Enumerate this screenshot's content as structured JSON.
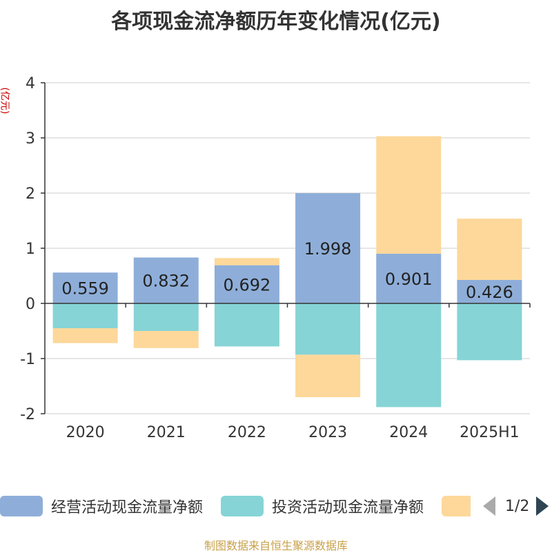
{
  "title": "各项现金流净额历年变化情况(亿元)",
  "unit_label": "(亿元)",
  "chart_data": {
    "type": "bar",
    "stacked": true,
    "categories": [
      "2020",
      "2021",
      "2022",
      "2023",
      "2024",
      "2025H1"
    ],
    "ylim": [
      -2,
      4
    ],
    "yticks": [
      -2,
      -1,
      0,
      1,
      2,
      3,
      4
    ],
    "grid": true,
    "legend_position": "bottom",
    "series": [
      {
        "name": "经营活动现金流量净额",
        "color": "#8eaed9",
        "values": [
          0.559,
          0.832,
          0.692,
          1.998,
          0.901,
          0.426
        ],
        "labels": [
          "0.559",
          "0.832",
          "0.692",
          "1.998",
          "0.901",
          "0.426"
        ]
      },
      {
        "name": "投资活动现金流量净额",
        "color": "#86d4d6",
        "values": [
          -0.45,
          -0.5,
          -0.78,
          -0.93,
          -1.88,
          -1.03
        ]
      },
      {
        "name": "",
        "color": "#fdd89a",
        "values": [
          -0.27,
          -0.31,
          0.13,
          -0.77,
          2.13,
          1.11
        ]
      }
    ]
  },
  "legend": {
    "items": [
      {
        "label": "经营活动现金流量净额",
        "color": "#8eaed9"
      },
      {
        "label": "投资活动现金流量净额",
        "color": "#86d4d6"
      },
      {
        "label": "",
        "color": "#fdd89a"
      }
    ],
    "pager": "1/2"
  },
  "source": "制图数据来自恒生聚源数据库"
}
